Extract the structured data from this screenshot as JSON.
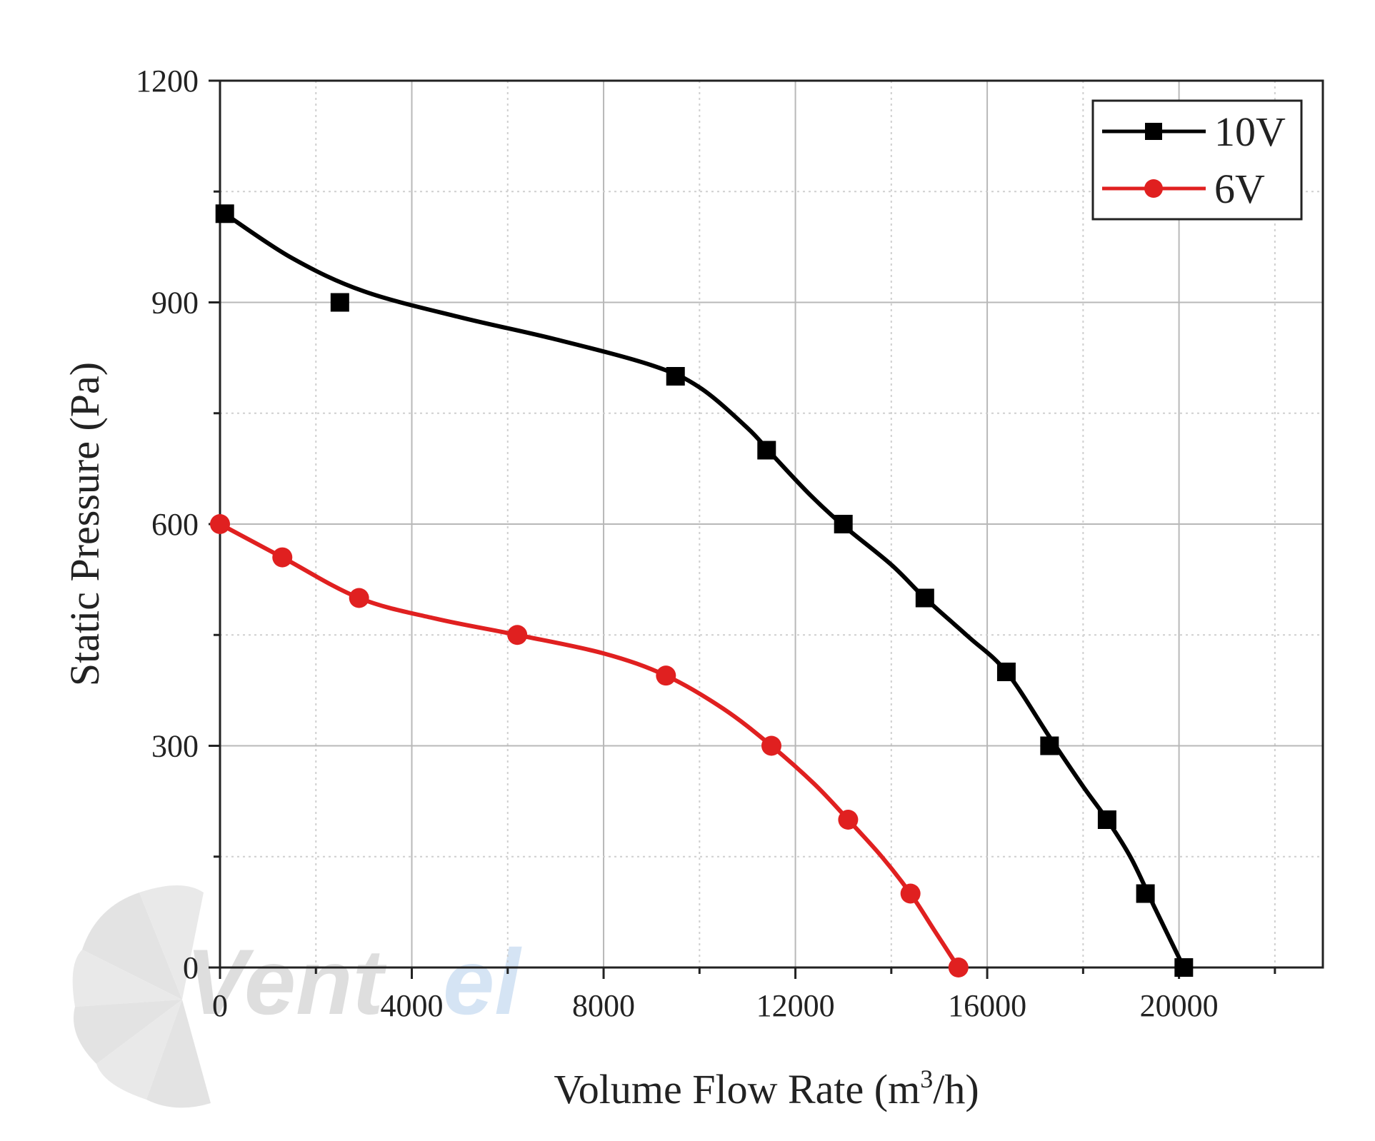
{
  "chart_data": {
    "type": "line",
    "title": "",
    "xlabel": "Volume Flow Rate (m",
    "xlabel_sup": "3",
    "xlabel_tail": "/h)",
    "ylabel": "Static Pressure (Pa)",
    "xlim": [
      0,
      23000
    ],
    "ylim": [
      0,
      1200
    ],
    "xticks": [
      0,
      4000,
      8000,
      12000,
      16000,
      20000
    ],
    "xtick_labels": [
      "0",
      "4000",
      "8000",
      "12000",
      "16000",
      "20000"
    ],
    "yticks": [
      0,
      300,
      600,
      900,
      1200
    ],
    "ytick_labels": [
      "0",
      "300",
      "600",
      "900",
      "1200"
    ],
    "grid": true,
    "legend_position": "top-right",
    "series": [
      {
        "name": "10V",
        "color": "#000000",
        "marker": "square",
        "points": [
          [
            100,
            1020
          ],
          [
            2500,
            900
          ],
          [
            9500,
            800
          ],
          [
            11400,
            700
          ],
          [
            13000,
            600
          ],
          [
            14700,
            500
          ],
          [
            16400,
            400
          ],
          [
            17300,
            300
          ],
          [
            18500,
            200
          ],
          [
            19300,
            100
          ],
          [
            20100,
            0
          ]
        ],
        "curve": [
          [
            100,
            1020
          ],
          [
            1500,
            960
          ],
          [
            3000,
            915
          ],
          [
            5000,
            880
          ],
          [
            7000,
            850
          ],
          [
            9000,
            815
          ],
          [
            10000,
            785
          ],
          [
            11000,
            730
          ],
          [
            11500,
            695
          ],
          [
            12300,
            640
          ],
          [
            13000,
            598
          ],
          [
            14000,
            545
          ],
          [
            14700,
            500
          ],
          [
            15600,
            448
          ],
          [
            16400,
            400
          ],
          [
            17300,
            312
          ],
          [
            18000,
            245
          ],
          [
            18500,
            200
          ],
          [
            19000,
            148
          ],
          [
            19500,
            80
          ],
          [
            20100,
            0
          ]
        ]
      },
      {
        "name": "6V",
        "color": "#e02020",
        "marker": "circle",
        "points": [
          [
            0,
            600
          ],
          [
            1300,
            555
          ],
          [
            2900,
            500
          ],
          [
            6200,
            450
          ],
          [
            9300,
            395
          ],
          [
            11500,
            300
          ],
          [
            13100,
            200
          ],
          [
            14400,
            100
          ],
          [
            15400,
            0
          ]
        ],
        "curve": [
          [
            0,
            600
          ],
          [
            1300,
            555
          ],
          [
            2900,
            500
          ],
          [
            4500,
            472
          ],
          [
            6200,
            450
          ],
          [
            8000,
            425
          ],
          [
            9300,
            395
          ],
          [
            10500,
            350
          ],
          [
            11500,
            300
          ],
          [
            12400,
            248
          ],
          [
            13100,
            200
          ],
          [
            13800,
            150
          ],
          [
            14400,
            100
          ],
          [
            14900,
            50
          ],
          [
            15400,
            0
          ]
        ]
      }
    ]
  },
  "watermark": {
    "text_a": "Vent",
    "text_b": "el",
    "icon": "fan-blade-icon"
  }
}
